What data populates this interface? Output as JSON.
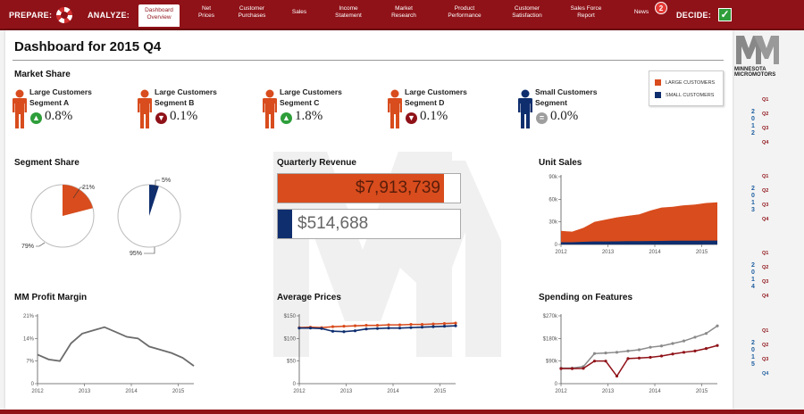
{
  "nav": {
    "prepare_label": "PREPARE:",
    "analyze_label": "ANALYZE:",
    "decide_label": "DECIDE:",
    "items": [
      {
        "label": "Dashboard\nOverview",
        "active": true
      },
      {
        "label": "Net\nPrices"
      },
      {
        "label": "Customer\nPurchases"
      },
      {
        "label": "Sales"
      },
      {
        "label": "Income\nStatement"
      },
      {
        "label": "Market\nResearch"
      },
      {
        "label": "Product\nPerformance"
      },
      {
        "label": "Customer\nSatisfaction"
      },
      {
        "label": "Sales Force\nReport"
      },
      {
        "label": "News"
      }
    ],
    "news_badge": "2"
  },
  "dashboard": {
    "title": "Dashboard for 2015 Q4"
  },
  "market_share": {
    "heading": "Market Share",
    "segments": [
      {
        "name": "Large Customers\nSegment A",
        "value": "0.8%",
        "trend": "up",
        "color": "#d84c1d"
      },
      {
        "name": "Large Customers\nSegment B",
        "value": "0.1%",
        "trend": "down",
        "color": "#d84c1d"
      },
      {
        "name": "Large Customers\nSegment C",
        "value": "1.8%",
        "trend": "up",
        "color": "#d84c1d"
      },
      {
        "name": "Large Customers\nSegment D",
        "value": "0.1%",
        "trend": "down",
        "color": "#d84c1d"
      },
      {
        "name": "Small Customers\nSegment",
        "value": "0.0%",
        "trend": "flat",
        "color": "#0f2e6e"
      }
    ]
  },
  "legend": {
    "large": "LARGE CUSTOMERS",
    "small": "SMALL CUSTOMERS"
  },
  "colors": {
    "large": "#d84c1d",
    "small": "#0f2e6e",
    "brand": "#8f1218",
    "up": "#2e9e3a",
    "down": "#8f1218",
    "flat": "#9e9e9e"
  },
  "segment_share": {
    "heading": "Segment Share"
  },
  "quarterly_revenue": {
    "heading": "Quarterly Revenue",
    "large_value": "$7,913,739",
    "small_value": "$514,688"
  },
  "unit_sales": {
    "heading": "Unit Sales"
  },
  "profit_margin": {
    "heading": "MM Profit Margin"
  },
  "average_prices": {
    "heading": "Average Prices"
  },
  "spending": {
    "heading": "Spending on Features"
  },
  "chart_data": [
    {
      "type": "pie",
      "title": "Segment Share",
      "slices": [
        {
          "label": "21%",
          "value": 21,
          "color": "#d84c1d"
        },
        {
          "label": "79%",
          "value": 79,
          "color": "#ffffff"
        }
      ]
    },
    {
      "type": "pie",
      "slices": [
        {
          "label": "5%",
          "value": 5,
          "color": "#0f2e6e"
        },
        {
          "label": "95%",
          "value": 95,
          "color": "#ffffff"
        }
      ]
    },
    {
      "type": "bar",
      "title": "Quarterly Revenue",
      "categories": [
        "Large Customers",
        "Small Customers"
      ],
      "values": [
        7913739,
        514688
      ]
    },
    {
      "type": "area",
      "title": "Unit Sales",
      "x_ticks": [
        "2012",
        "2013",
        "2014",
        "2015"
      ],
      "y_ticks": [
        "0",
        "30k",
        "60k",
        "90k"
      ],
      "ylim": [
        0,
        90000
      ],
      "series": [
        {
          "name": "LARGE CUSTOMERS",
          "values": [
            18000,
            17000,
            22000,
            30000,
            33000,
            36000,
            38000,
            40000,
            45000,
            49000,
            50000,
            52000,
            53000,
            55000,
            56000
          ]
        },
        {
          "name": "SMALL CUSTOMERS",
          "values": [
            3000,
            3000,
            3500,
            4000,
            4000,
            4200,
            4500,
            4500,
            4600,
            4800,
            5000,
            5000,
            5100,
            5200,
            5200
          ]
        }
      ]
    },
    {
      "type": "line",
      "title": "MM Profit Margin",
      "x_ticks": [
        "2012",
        "2013",
        "2014",
        "2015"
      ],
      "y_ticks": [
        "0",
        "7%",
        "14%",
        "21%"
      ],
      "ylim": [
        0,
        21
      ],
      "series": [
        {
          "values": [
            9,
            7.5,
            7,
            12.5,
            15.5,
            16.5,
            17.5,
            16,
            14.5,
            14,
            11.5,
            10.5,
            9.5,
            8,
            5.5
          ]
        }
      ]
    },
    {
      "type": "line",
      "title": "Average Prices",
      "x_ticks": [
        "2012",
        "2013",
        "2014",
        "2015"
      ],
      "y_ticks": [
        "0",
        "$50",
        "$100",
        "$150"
      ],
      "ylim": [
        0,
        150
      ],
      "series": [
        {
          "name": "LARGE CUSTOMERS",
          "values": [
            124,
            125,
            124,
            126,
            127,
            128,
            129,
            129,
            130,
            130,
            131,
            131,
            132,
            133,
            134
          ]
        },
        {
          "name": "SMALL CUSTOMERS",
          "values": [
            123,
            123,
            122,
            116,
            115,
            117,
            121,
            122,
            123,
            123,
            124,
            125,
            126,
            127,
            128
          ]
        }
      ]
    },
    {
      "type": "line",
      "title": "Spending on Features",
      "x_ticks": [
        "2012",
        "2013",
        "2014",
        "2015"
      ],
      "y_ticks": [
        "0",
        "$90k",
        "$180k",
        "$270k"
      ],
      "ylim": [
        0,
        270000
      ],
      "series": [
        {
          "name": "LARGE CUSTOMERS",
          "values": [
            62000,
            62000,
            68000,
            120000,
            122000,
            125000,
            130000,
            135000,
            145000,
            150000,
            160000,
            170000,
            185000,
            200000,
            230000
          ]
        },
        {
          "name": "SMALL CUSTOMERS",
          "values": [
            60000,
            60000,
            61000,
            90000,
            90000,
            30000,
            100000,
            102000,
            105000,
            110000,
            118000,
            125000,
            130000,
            140000,
            152000
          ]
        }
      ]
    }
  ],
  "brand": {
    "logo_text": "MINNESOTA\nMICROMOTORS"
  },
  "timeline": [
    {
      "year": "2012",
      "quarters": [
        "Q1",
        "Q2",
        "Q3",
        "Q4"
      ]
    },
    {
      "year": "2013",
      "quarters": [
        "Q1",
        "Q2",
        "Q3",
        "Q4"
      ]
    },
    {
      "year": "2014",
      "quarters": [
        "Q1",
        "Q2",
        "Q3",
        "Q4"
      ]
    },
    {
      "year": "2015",
      "quarters": [
        "Q1",
        "Q2",
        "Q3",
        "Q4"
      ]
    }
  ]
}
